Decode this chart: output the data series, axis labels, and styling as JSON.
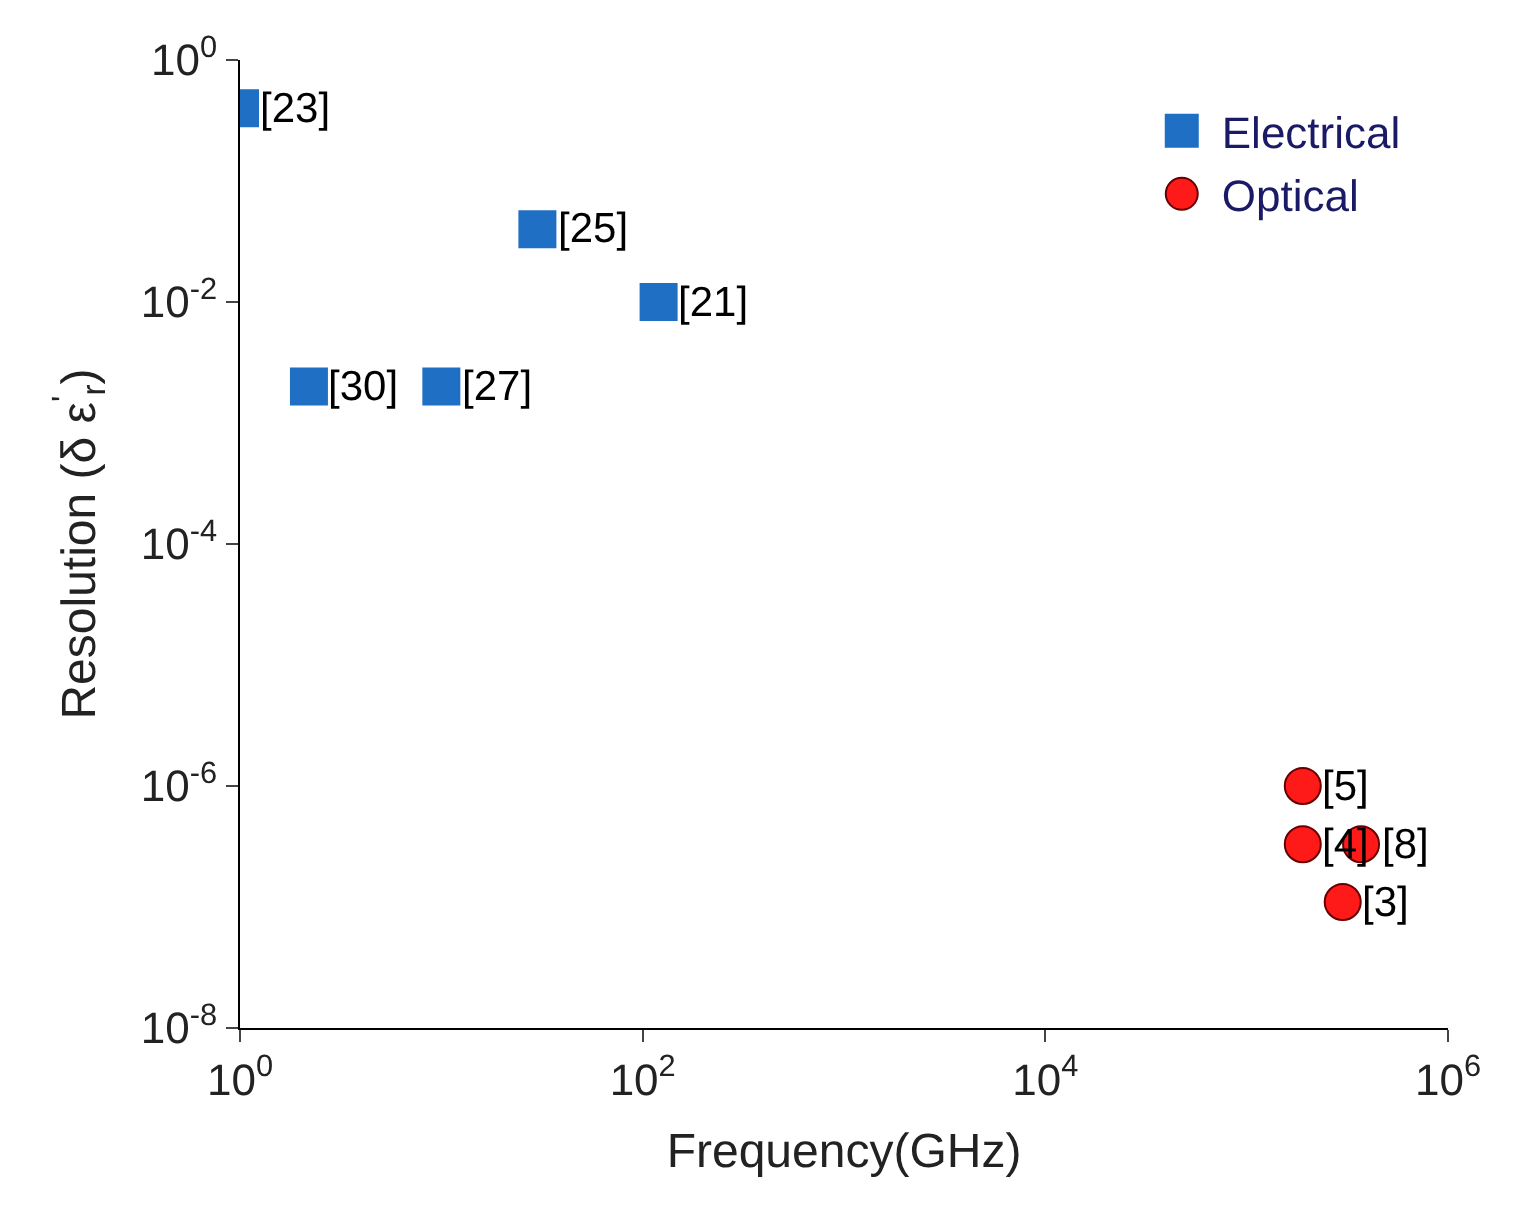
{
  "chart_data": {
    "type": "scatter",
    "xlabel": "Frequency(GHz)",
    "ylabel": "Resolution (δ ε$^{'}$$_{r}$)",
    "log": "xy",
    "grid": false,
    "legend": "top right",
    "xlim": [
      1,
      1000000
    ],
    "xticks": [
      {
        "value": 1,
        "label": "10$^{0}$"
      },
      {
        "value": 100,
        "label": "10$^{2}$"
      },
      {
        "value": 10000,
        "label": "10$^{4}$"
      },
      {
        "value": 1000000,
        "label": "10$^{6}$"
      }
    ],
    "ylim": [
      1e-08,
      1
    ],
    "yticks": [
      {
        "value": 1e-08,
        "label": "10$^{-8}$"
      },
      {
        "value": 1e-06,
        "label": "10$^{-6}$"
      },
      {
        "value": 0.0001,
        "label": "10$^{-4}$"
      },
      {
        "value": 0.01,
        "label": "10$^{-2}$"
      },
      {
        "value": 1,
        "label": "10$^{0}$"
      }
    ],
    "series": [
      {
        "name": "Electrical",
        "color": "#1f6fc4",
        "marker": "square",
        "x": [
          1,
          30,
          120,
          2.2,
          10
        ],
        "values": [
          0.4,
          0.04,
          0.01,
          0.002,
          0.002
        ]
      },
      {
        "name": "Optical",
        "color": "#ff1a1a",
        "marker": "circle",
        "x": [
          190000,
          190000,
          370000,
          300000
        ],
        "values": [
          1e-06,
          3.3e-07,
          3.3e-07,
          1.1e-07
        ]
      }
    ],
    "annotations": [
      {
        "text": "[23]",
        "x": 1,
        "y": 0.4
      },
      {
        "text": "[25]",
        "x": 30,
        "y": 0.04
      },
      {
        "text": "[21]",
        "x": 120,
        "y": 0.01
      },
      {
        "text": "[30]",
        "x": 2.2,
        "y": 0.002
      },
      {
        "text": "[27]",
        "x": 10,
        "y": 0.002
      },
      {
        "text": "[5]",
        "x": 190000,
        "y": 1e-06
      },
      {
        "text": "[4]",
        "x": 190000,
        "y": 3.3e-07
      },
      {
        "text": "[8]",
        "x": 370000,
        "y": 3.3e-07
      },
      {
        "text": "[3]",
        "x": 300000,
        "y": 1.1e-07
      }
    ]
  }
}
